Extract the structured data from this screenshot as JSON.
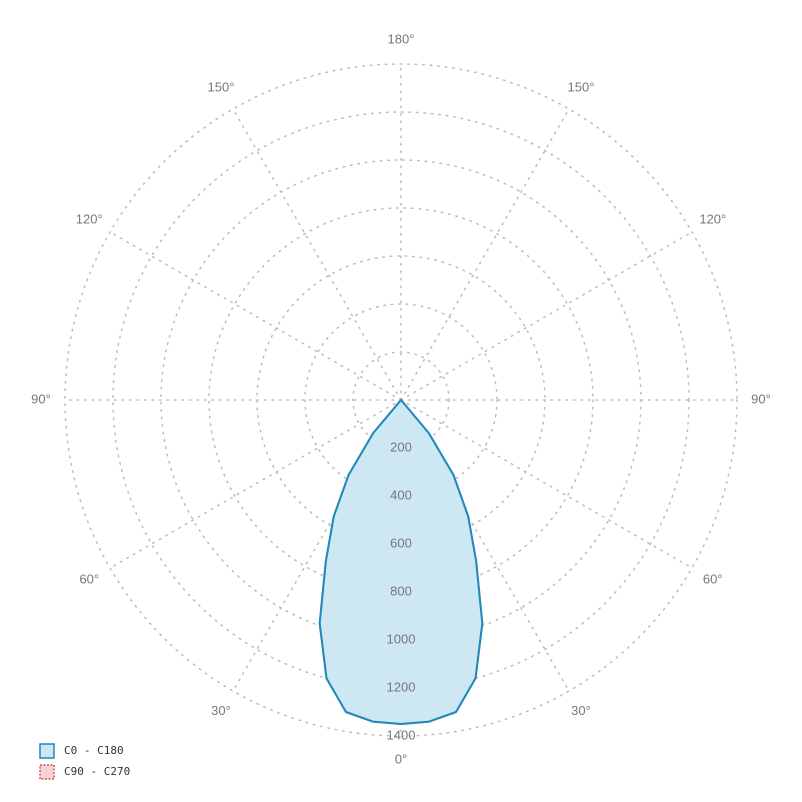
{
  "chart_data": {
    "type": "polar",
    "angles": [
      0,
      5,
      10,
      15,
      20,
      25,
      30,
      35,
      40,
      45
    ],
    "series": [
      {
        "name": "C0 - C180",
        "color": "#1a8abf",
        "fill": "#cde7f3",
        "values": [
          1350,
          1345,
          1320,
          1200,
          990,
          740,
          560,
          380,
          180,
          0
        ]
      },
      {
        "name": "C90 - C270",
        "color": "#d9534f",
        "fill": "#f6d3d3",
        "values": [
          1350,
          1345,
          1320,
          1200,
          990,
          740,
          560,
          380,
          180,
          0
        ]
      }
    ],
    "rlim": [
      0,
      1400
    ],
    "rticks": [
      200,
      400,
      600,
      800,
      1000,
      1200,
      1400
    ],
    "angleticks": [
      {
        "value": 0,
        "label": "0°"
      },
      {
        "value": 30,
        "label": "30°"
      },
      {
        "value": 60,
        "label": "60°"
      },
      {
        "value": 90,
        "label": "90°"
      },
      {
        "value": 120,
        "label": "120°"
      },
      {
        "value": 150,
        "label": "150°"
      },
      {
        "value": 180,
        "label": "180°"
      }
    ],
    "grid": true,
    "legend": "bottom-left"
  }
}
